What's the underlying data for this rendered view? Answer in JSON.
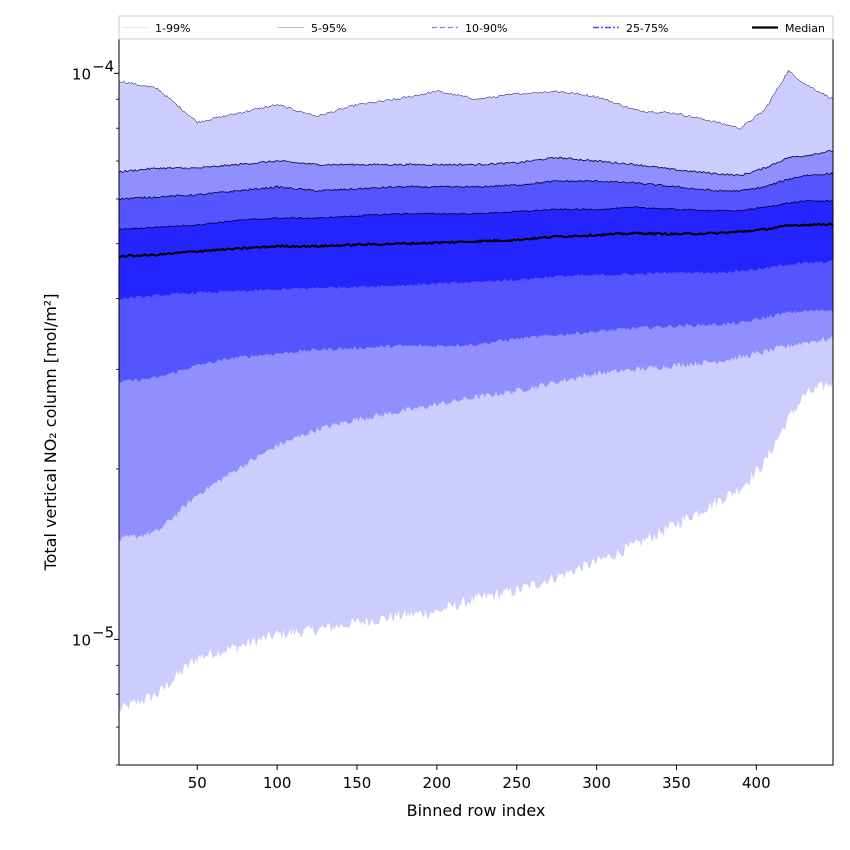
{
  "chart_data": {
    "type": "area",
    "title": "",
    "xlabel": "Binned row index",
    "ylabel": "Total vertical NO₂ column [mol/m²]",
    "y_scale": "log",
    "xlim": [
      1,
      448
    ],
    "ylim": [
      6e-06,
      0.000115
    ],
    "x_ticks": [
      50,
      100,
      150,
      200,
      250,
      300,
      350,
      400
    ],
    "y_tick_labels": [
      {
        "base": "10",
        "exp": "−4",
        "value": 0.0001
      },
      {
        "base": "10",
        "exp": "−5",
        "value": 1e-05
      }
    ],
    "grid": false,
    "legend_position": "top",
    "legend": [
      {
        "label": "1-99%",
        "style": "solid-thin"
      },
      {
        "label": "5-95%",
        "style": "solid-thin"
      },
      {
        "label": "10-90%",
        "style": "dashed"
      },
      {
        "label": "25-75%",
        "style": "dashdot"
      },
      {
        "label": "Median",
        "style": "solid-thick"
      }
    ],
    "colors": {
      "band_1_99": "#ccccff",
      "band_5_95": "#8f8fff",
      "band_10_90": "#5555ff",
      "band_25_75": "#2424ff",
      "median": "#000000"
    },
    "x": [
      1,
      25,
      50,
      75,
      100,
      125,
      150,
      175,
      200,
      225,
      250,
      275,
      300,
      325,
      350,
      375,
      390,
      405,
      420,
      430,
      448
    ],
    "series": [
      {
        "name": "1-99%",
        "lower": [
          7.5e-06,
          8e-06,
          9.3e-06,
          9.7e-06,
          1.02e-05,
          1.04e-05,
          1.07e-05,
          1.1e-05,
          1.12e-05,
          1.18e-05,
          1.22e-05,
          1.29e-05,
          1.37e-05,
          1.47e-05,
          1.6e-05,
          1.75e-05,
          1.85e-05,
          2.05e-05,
          2.45e-05,
          2.7e-05,
          2.85e-05
        ],
        "upper": [
          9.7e-05,
          9.4e-05,
          8.2e-05,
          8.5e-05,
          8.8e-05,
          8.4e-05,
          8.8e-05,
          9e-05,
          9.3e-05,
          9e-05,
          9.2e-05,
          9.3e-05,
          9.1e-05,
          8.6e-05,
          8.5e-05,
          8.2e-05,
          8e-05,
          8.6e-05,
          0.000101,
          9.6e-05,
          9e-05
        ]
      },
      {
        "name": "5-95%",
        "lower": [
          1.5e-05,
          1.55e-05,
          1.8e-05,
          2e-05,
          2.2e-05,
          2.35e-05,
          2.45e-05,
          2.52e-05,
          2.6e-05,
          2.68e-05,
          2.75e-05,
          2.85e-05,
          2.95e-05,
          3e-05,
          3.05e-05,
          3.1e-05,
          3.15e-05,
          3.22e-05,
          3.3e-05,
          3.35e-05,
          3.4e-05
        ],
        "upper": [
          6.7e-05,
          6.8e-05,
          6.8e-05,
          6.9e-05,
          7e-05,
          6.9e-05,
          6.9e-05,
          6.9e-05,
          6.9e-05,
          6.9e-05,
          6.95e-05,
          7.1e-05,
          7e-05,
          6.9e-05,
          6.75e-05,
          6.65e-05,
          6.6e-05,
          6.8e-05,
          7.1e-05,
          7.15e-05,
          7.3e-05
        ]
      },
      {
        "name": "10-90%",
        "lower": [
          2.85e-05,
          2.9e-05,
          3.05e-05,
          3.15e-05,
          3.2e-05,
          3.25e-05,
          3.27e-05,
          3.3e-05,
          3.3e-05,
          3.32e-05,
          3.4e-05,
          3.45e-05,
          3.5e-05,
          3.55e-05,
          3.58e-05,
          3.6e-05,
          3.62e-05,
          3.7e-05,
          3.78e-05,
          3.8e-05,
          3.82e-05
        ],
        "upper": [
          6e-05,
          6.05e-05,
          6.1e-05,
          6.2e-05,
          6.3e-05,
          6.2e-05,
          6.25e-05,
          6.3e-05,
          6.3e-05,
          6.3e-05,
          6.35e-05,
          6.45e-05,
          6.45e-05,
          6.4e-05,
          6.3e-05,
          6.2e-05,
          6.2e-05,
          6.3e-05,
          6.5e-05,
          6.6e-05,
          6.65e-05
        ]
      },
      {
        "name": "25-75%",
        "lower": [
          4e-05,
          4.05e-05,
          4.1e-05,
          4.12e-05,
          4.15e-05,
          4.18e-05,
          4.2e-05,
          4.22e-05,
          4.25e-05,
          4.28e-05,
          4.32e-05,
          4.38e-05,
          4.4e-05,
          4.42e-05,
          4.45e-05,
          4.45e-05,
          4.48e-05,
          4.52e-05,
          4.6e-05,
          4.62e-05,
          4.65e-05
        ],
        "upper": [
          5.3e-05,
          5.35e-05,
          5.4e-05,
          5.5e-05,
          5.55e-05,
          5.55e-05,
          5.6e-05,
          5.65e-05,
          5.65e-05,
          5.65e-05,
          5.7e-05,
          5.75e-05,
          5.75e-05,
          5.8e-05,
          5.75e-05,
          5.72e-05,
          5.72e-05,
          5.8e-05,
          5.9e-05,
          5.95e-05,
          5.95e-05
        ]
      },
      {
        "name": "Median",
        "values": [
          4.75e-05,
          4.78e-05,
          4.85e-05,
          4.9e-05,
          4.95e-05,
          4.95e-05,
          4.98e-05,
          5e-05,
          5.02e-05,
          5.05e-05,
          5.08e-05,
          5.15e-05,
          5.18e-05,
          5.22e-05,
          5.2e-05,
          5.22e-05,
          5.25e-05,
          5.3e-05,
          5.38e-05,
          5.4e-05,
          5.42e-05
        ]
      }
    ]
  }
}
